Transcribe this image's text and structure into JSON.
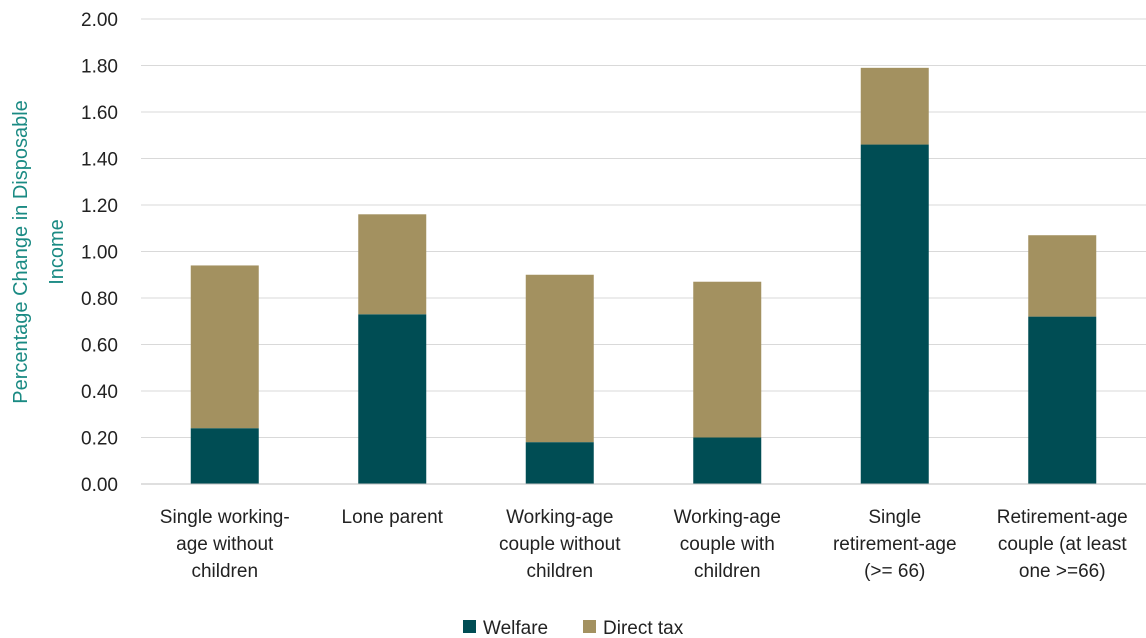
{
  "chart_data": {
    "type": "bar",
    "stacked": true,
    "title": "",
    "xlabel": "",
    "ylabel": "Percentage Change in Disposable Income",
    "ylabel_lines": [
      "Percentage Change in Disposable",
      "Income"
    ],
    "ylim": [
      0,
      2.0
    ],
    "yticks": [
      "0.00",
      "0.20",
      "0.40",
      "0.60",
      "0.80",
      "1.00",
      "1.20",
      "1.40",
      "1.60",
      "1.80",
      "2.00"
    ],
    "grid": true,
    "legend_position": "bottom",
    "categories": [
      [
        "Single working-",
        "age without",
        "children"
      ],
      [
        "Lone parent"
      ],
      [
        "Working-age",
        "couple without",
        "children"
      ],
      [
        "Working-age",
        "couple with",
        "children"
      ],
      [
        "Single",
        "retirement-age",
        "(>= 66)"
      ],
      [
        "Retirement-age",
        "couple (at least",
        "one >=66)"
      ]
    ],
    "series": [
      {
        "name": "Welfare",
        "color": "#004d54",
        "values": [
          0.24,
          0.73,
          0.18,
          0.2,
          1.46,
          0.72
        ]
      },
      {
        "name": "Direct tax",
        "color": "#a39160",
        "values": [
          0.7,
          0.43,
          0.72,
          0.67,
          0.33,
          0.35
        ]
      }
    ],
    "axis_title_color": "#1a8a83",
    "grid_color": "#d9d9d9"
  }
}
